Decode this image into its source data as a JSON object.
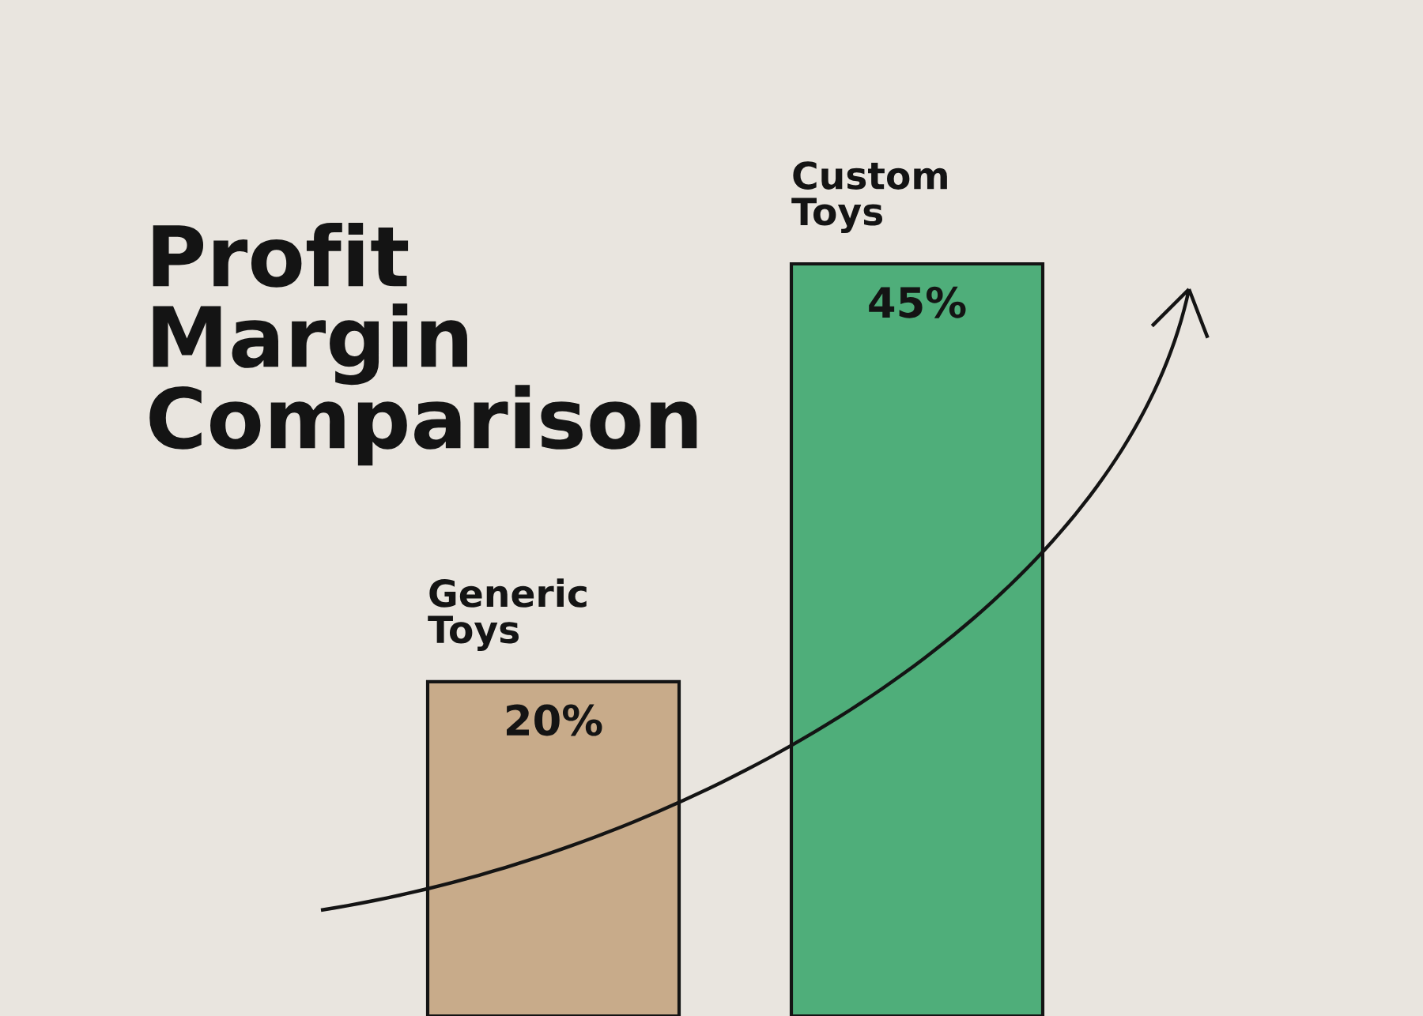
{
  "chart_data": {
    "type": "bar",
    "title": "Profit Margin Comparison",
    "categories": [
      "Generic Toys",
      "Custom Toys"
    ],
    "values": [
      20,
      45
    ],
    "colors": [
      "#c8ab8a",
      "#4fae7a"
    ],
    "value_labels": [
      "20%",
      "45%"
    ]
  }
}
